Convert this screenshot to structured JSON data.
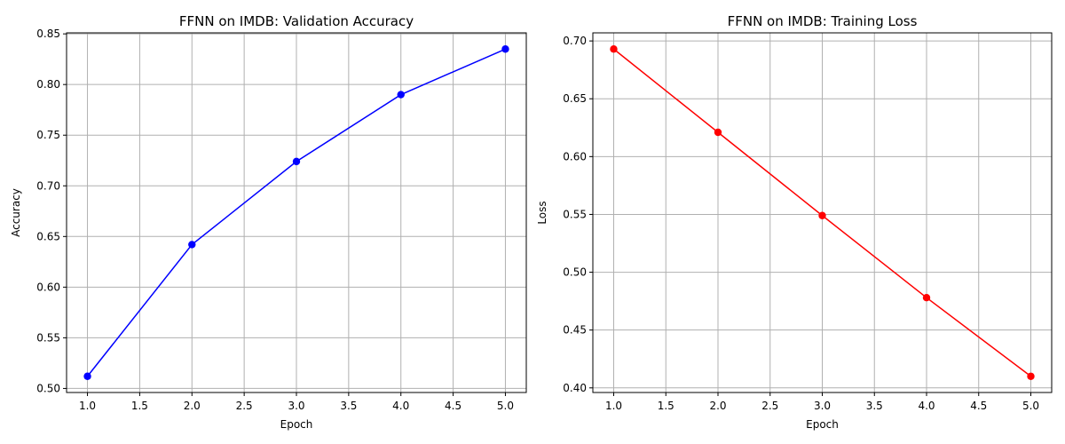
{
  "chart_data": [
    {
      "type": "line",
      "title": "FFNN on IMDB: Validation Accuracy",
      "xlabel": "Epoch",
      "ylabel": "Accuracy",
      "x": [
        1,
        2,
        3,
        4,
        5
      ],
      "series": [
        {
          "values": [
            0.512,
            0.642,
            0.724,
            0.79,
            0.835
          ],
          "color": "#0000ff",
          "marker": "circle"
        }
      ],
      "xlim": [
        0.8,
        5.2
      ],
      "ylim": [
        0.496,
        0.851
      ],
      "xticks": [
        "1.0",
        "1.5",
        "2.0",
        "2.5",
        "3.0",
        "3.5",
        "4.0",
        "4.5",
        "5.0"
      ],
      "yticks": [
        "0.50",
        "0.55",
        "0.60",
        "0.65",
        "0.70",
        "0.75",
        "0.80",
        "0.85"
      ],
      "grid": true,
      "legend": "none"
    },
    {
      "type": "line",
      "title": "FFNN on IMDB: Training Loss",
      "xlabel": "Epoch",
      "ylabel": "Loss",
      "x": [
        1,
        2,
        3,
        4,
        5
      ],
      "series": [
        {
          "values": [
            0.693,
            0.621,
            0.549,
            0.478,
            0.41
          ],
          "color": "#ff0000",
          "marker": "circle"
        }
      ],
      "xlim": [
        0.8,
        5.2
      ],
      "ylim": [
        0.396,
        0.707
      ],
      "xticks": [
        "1.0",
        "1.5",
        "2.0",
        "2.5",
        "3.0",
        "3.5",
        "4.0",
        "4.5",
        "5.0"
      ],
      "yticks": [
        "0.40",
        "0.45",
        "0.50",
        "0.55",
        "0.60",
        "0.65",
        "0.70"
      ],
      "grid": true,
      "legend": "none"
    }
  ]
}
